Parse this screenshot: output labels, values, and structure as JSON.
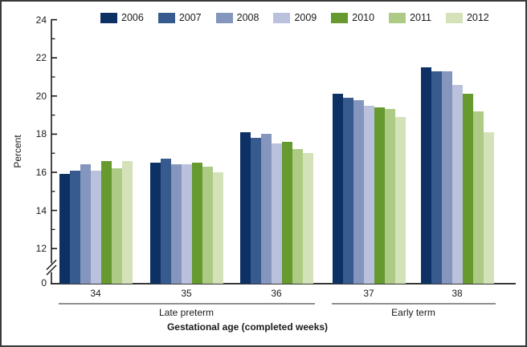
{
  "chart_data": {
    "type": "bar",
    "title": "",
    "xlabel": "Gestational age (completed weeks)",
    "ylabel": "Percent",
    "categories": [
      "34",
      "35",
      "36",
      "37",
      "38"
    ],
    "category_groups": [
      {
        "label": "Late preterm",
        "start_category": "34",
        "end_category": "36"
      },
      {
        "label": "Early term",
        "start_category": "37",
        "end_category": "38"
      }
    ],
    "series": [
      {
        "name": "2006",
        "color": "#0d3165",
        "values": [
          15.9,
          16.5,
          18.1,
          20.1,
          21.5
        ]
      },
      {
        "name": "2007",
        "color": "#375a8f",
        "values": [
          16.1,
          16.7,
          17.8,
          19.9,
          21.3
        ]
      },
      {
        "name": "2008",
        "color": "#8495be",
        "values": [
          16.4,
          16.4,
          18.0,
          19.8,
          21.3
        ]
      },
      {
        "name": "2009",
        "color": "#bac1dc",
        "values": [
          16.1,
          16.4,
          17.5,
          19.5,
          20.6
        ]
      },
      {
        "name": "2010",
        "color": "#66992e",
        "values": [
          16.6,
          16.5,
          17.6,
          19.4,
          20.1
        ]
      },
      {
        "name": "2011",
        "color": "#aecb85",
        "values": [
          16.2,
          16.3,
          17.2,
          19.3,
          19.2
        ]
      },
      {
        "name": "2012",
        "color": "#d4e2ba",
        "values": [
          16.6,
          16.0,
          17.0,
          18.9,
          18.1
        ]
      }
    ],
    "y_axis": {
      "major_ticks": [
        12,
        14,
        16,
        18,
        20,
        22,
        24
      ],
      "minor_ticks": [
        13,
        15,
        17,
        19,
        21,
        23
      ],
      "origin_label": "0",
      "axis_break_between": [
        0,
        12
      ],
      "display_range": [
        12,
        24
      ]
    },
    "legend_position": "top",
    "grid": false
  }
}
